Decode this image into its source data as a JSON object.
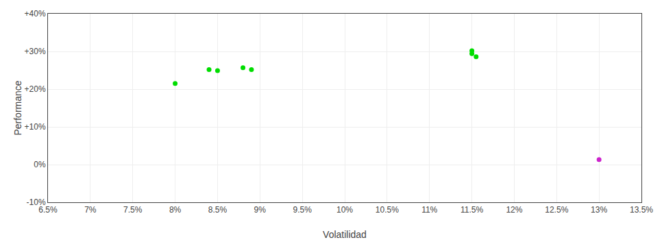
{
  "chart_data": {
    "type": "scatter",
    "x_label": "Volatilidad",
    "y_label": "Performance",
    "series": [
      {
        "color": "#00dd00",
        "x": [
          0.08,
          0.084,
          0.085,
          0.088,
          0.089,
          0.115,
          0.115,
          0.1155
        ],
        "values": [
          0.215,
          0.252,
          0.249,
          0.257,
          0.252,
          0.302,
          0.294,
          0.286
        ]
      },
      {
        "color": "#cc22cc",
        "x": [
          0.13
        ],
        "values": [
          0.013
        ]
      }
    ],
    "xlim": [
      0.065,
      0.135
    ],
    "ylim": [
      -0.1,
      0.4
    ],
    "xticks": [
      {
        "value": 0.065,
        "label": "6.5%"
      },
      {
        "value": 0.07,
        "label": "7%"
      },
      {
        "value": 0.075,
        "label": "7.5%"
      },
      {
        "value": 0.08,
        "label": "8%"
      },
      {
        "value": 0.085,
        "label": "8.5%"
      },
      {
        "value": 0.09,
        "label": "9%"
      },
      {
        "value": 0.095,
        "label": "9.5%"
      },
      {
        "value": 0.1,
        "label": "10%"
      },
      {
        "value": 0.105,
        "label": "10.5%"
      },
      {
        "value": 0.11,
        "label": "11%"
      },
      {
        "value": 0.115,
        "label": "11.5%"
      },
      {
        "value": 0.12,
        "label": "12%"
      },
      {
        "value": 0.125,
        "label": "12.5%"
      },
      {
        "value": 0.13,
        "label": "13%"
      },
      {
        "value": 0.135,
        "label": "13.5%"
      }
    ],
    "yticks": [
      {
        "value": -0.1,
        "label": "-10%"
      },
      {
        "value": 0.0,
        "label": "0%"
      },
      {
        "value": 0.1,
        "label": "+10%"
      },
      {
        "value": 0.2,
        "label": "+20%"
      },
      {
        "value": 0.3,
        "label": "+30%"
      },
      {
        "value": 0.4,
        "label": "+40%"
      }
    ],
    "grid": true
  }
}
